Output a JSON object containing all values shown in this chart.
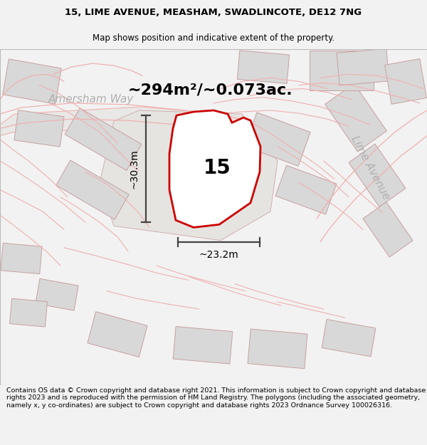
{
  "title_line1": "15, LIME AVENUE, MEASHAM, SWADLINCOTE, DE12 7NG",
  "title_line2": "Map shows position and indicative extent of the property.",
  "area_text": "~294m²/~0.073ac.",
  "label_number": "15",
  "dim_vertical": "~30.3m",
  "dim_horizontal": "~23.2m",
  "street_label1": "Amersham Way",
  "street_label2": "Lime Avenue",
  "footer_text": "Contains OS data © Crown copyright and database right 2021. This information is subject to Crown copyright and database rights 2023 and is reproduced with the permission of HM Land Registry. The polygons (including the associated geometry, namely x, y co-ordinates) are subject to Crown copyright and database rights 2023 Ordnance Survey 100026316.",
  "bg_color": "#f2f2f2",
  "map_bg": "#fafafa",
  "plot_fill": "#f0f0ee",
  "plot_edge": "#cc0000",
  "pink": "#f0b0b0",
  "building_fill": "#d8d8d8",
  "building_stroke": "#c8a0a0",
  "dim_line_color": "#444444",
  "title_fontsize": 9.5,
  "subtitle_fontsize": 8.5,
  "area_fontsize": 16,
  "label_fontsize": 20,
  "street_fontsize": 11,
  "footer_fontsize": 6.8
}
